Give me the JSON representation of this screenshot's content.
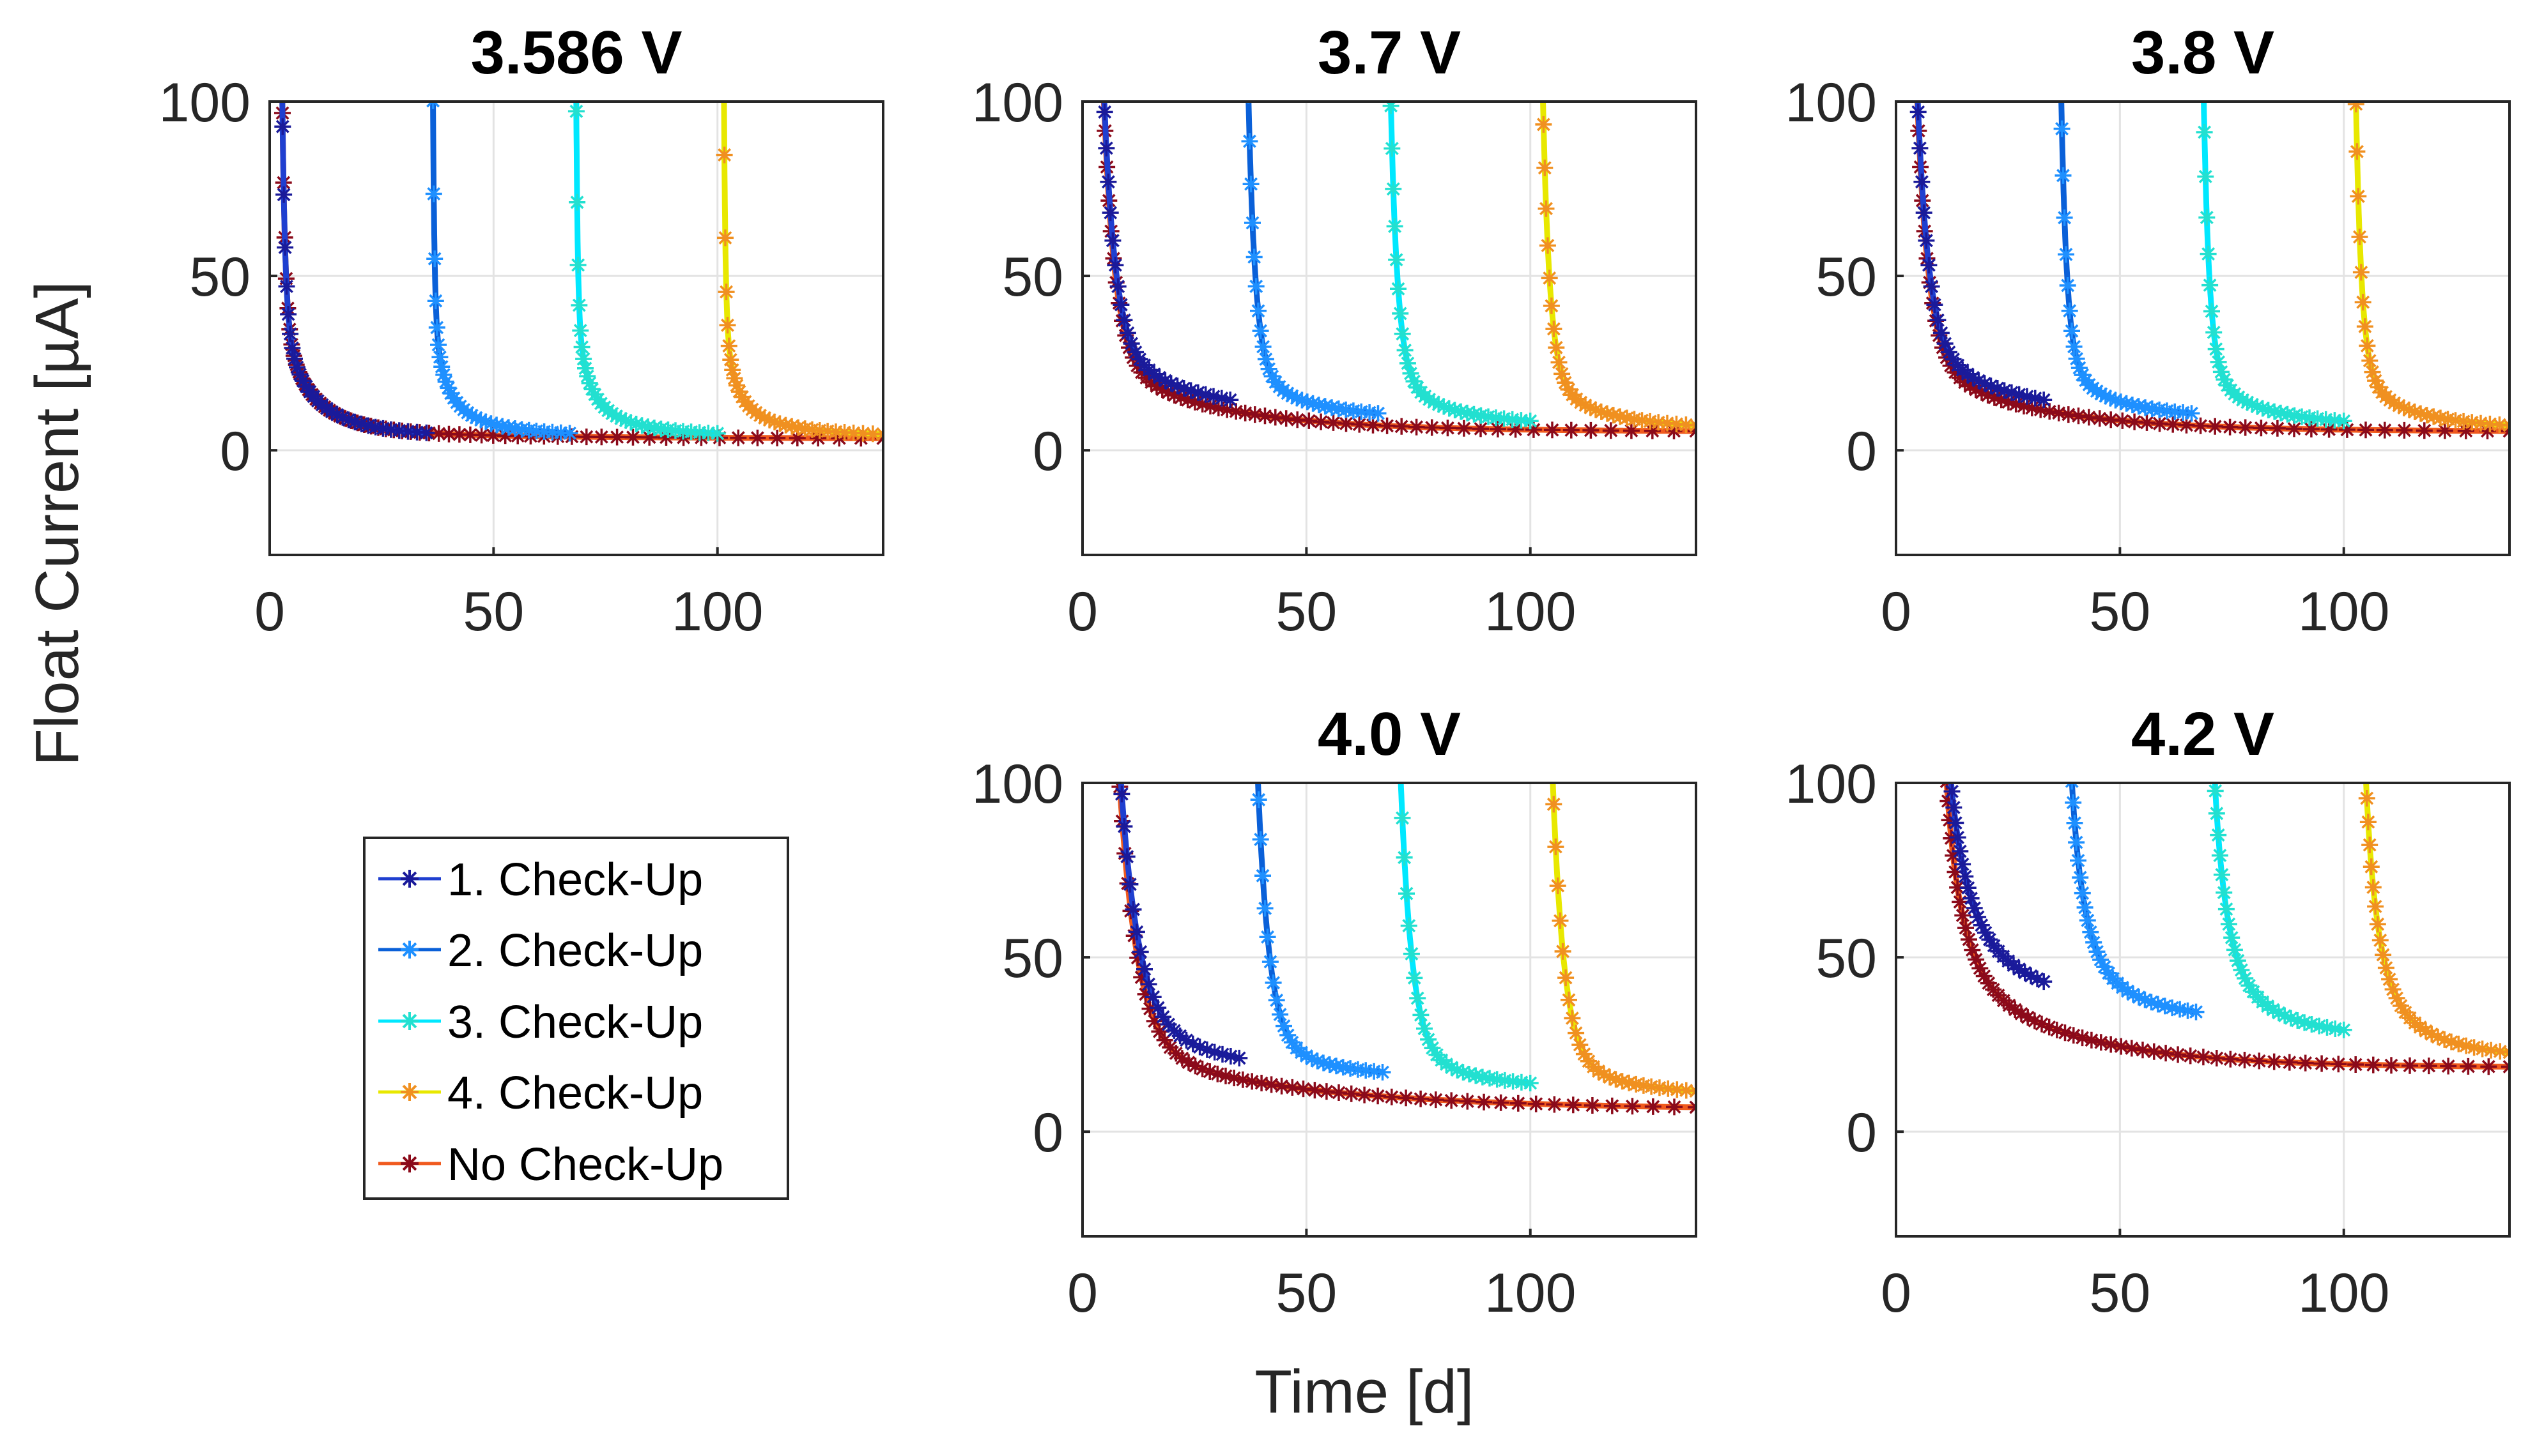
{
  "figure": {
    "ylabel": "Float Current [µA]",
    "xlabel": "Time [d]"
  },
  "legend": {
    "placement": "left-bottom",
    "entries": [
      {
        "label": "1. Check-Up",
        "color": "#1f3fd0"
      },
      {
        "label": "2. Check-Up",
        "color": "#1e90ff"
      },
      {
        "label": "3. Check-Up",
        "color": "#22e0d0"
      },
      {
        "label": "4. Check-Up",
        "color": "#e8d800"
      },
      {
        "label": "No Check-Up",
        "color": "#e8501a"
      }
    ]
  },
  "colors": {
    "series1_marker": "#1a1a9a",
    "series1_line": "#1f3fd0",
    "series2_marker": "#1e90ff",
    "series2_line": "#0a60d8",
    "series3_marker": "#22e0d0",
    "series3_line": "#00e8ff",
    "series4_marker": "#f09020",
    "series4_line": "#e8e800",
    "series5_marker": "#8b0a1a",
    "series5_line": "#f05a1e"
  },
  "chart_data": [
    {
      "type": "line",
      "title": "3.586 V",
      "xlim": [
        0,
        137
      ],
      "ylim": [
        -30,
        100
      ],
      "xticks": [
        0,
        50,
        100
      ],
      "yticks": [
        0,
        50,
        100
      ],
      "grid": true,
      "series": [
        {
          "name": "1. Check-Up",
          "t0": 2,
          "t1": 35,
          "A": 200,
          "tau": 0.6,
          "floor": 3,
          "B": 15,
          "tau2": 8
        },
        {
          "name": "2. Check-Up",
          "t0": 36,
          "t1": 67,
          "A": 250,
          "tau": 0.3,
          "floor": 3,
          "B": 5,
          "tau2": 6
        },
        {
          "name": "3. Check-Up",
          "t0": 68,
          "t1": 100,
          "A": 250,
          "tau": 0.3,
          "floor": 3,
          "B": 5,
          "tau2": 6
        },
        {
          "name": "4. Check-Up",
          "t0": 101,
          "t1": 137,
          "A": 250,
          "tau": 0.3,
          "floor": 3,
          "B": 3,
          "tau2": 6
        },
        {
          "name": "No Check-Up",
          "t0": 2,
          "t1": 137,
          "A": 200,
          "tau": 0.6,
          "floor": 3,
          "B": 15,
          "tau2": 8
        }
      ]
    },
    {
      "type": "line",
      "title": "3.7 V",
      "xlim": [
        0,
        137
      ],
      "ylim": [
        -30,
        100
      ],
      "xticks": [
        0,
        50,
        100
      ],
      "yticks": [
        0,
        50,
        100
      ],
      "grid": true,
      "series": [
        {
          "name": "1. Check-Up",
          "t0": 3,
          "t1": 33,
          "A": 120,
          "tau": 2.5,
          "floor": 8,
          "B": 15,
          "tau2": 25
        },
        {
          "name": "2. Check-Up",
          "t0": 36,
          "t1": 66,
          "A": 120,
          "tau": 1.5,
          "floor": 8,
          "B": 5,
          "tau2": 15
        },
        {
          "name": "3. Check-Up",
          "t0": 68,
          "t1": 100,
          "A": 100,
          "tau": 1.5,
          "floor": 6,
          "B": 5,
          "tau2": 15
        },
        {
          "name": "4. Check-Up",
          "t0": 102,
          "t1": 137,
          "A": 100,
          "tau": 1.5,
          "floor": 5,
          "B": 5,
          "tau2": 15
        },
        {
          "name": "No Check-Up",
          "t0": 3,
          "t1": 137,
          "A": 120,
          "tau": 2.5,
          "floor": 5,
          "B": 15,
          "tau2": 25
        }
      ]
    },
    {
      "type": "line",
      "title": "3.8 V",
      "xlim": [
        0,
        137
      ],
      "ylim": [
        -30,
        100
      ],
      "xticks": [
        0,
        50,
        100
      ],
      "yticks": [
        0,
        50,
        100
      ],
      "grid": true,
      "series": [
        {
          "name": "1. Check-Up",
          "t0": 3,
          "t1": 33,
          "A": 120,
          "tau": 2.5,
          "floor": 8,
          "B": 15,
          "tau2": 25
        },
        {
          "name": "2. Check-Up",
          "t0": 36,
          "t1": 66,
          "A": 120,
          "tau": 1.2,
          "floor": 8,
          "B": 5,
          "tau2": 15
        },
        {
          "name": "3. Check-Up",
          "t0": 68,
          "t1": 100,
          "A": 100,
          "tau": 1.2,
          "floor": 6,
          "B": 5,
          "tau2": 15
        },
        {
          "name": "4. Check-Up",
          "t0": 102,
          "t1": 137,
          "A": 100,
          "tau": 1.2,
          "floor": 5,
          "B": 5,
          "tau2": 15
        },
        {
          "name": "No Check-Up",
          "t0": 3,
          "t1": 137,
          "A": 120,
          "tau": 2.5,
          "floor": 5,
          "B": 15,
          "tau2": 25
        }
      ]
    },
    {
      "type": "line",
      "title": "4.0 V",
      "xlim": [
        0,
        137
      ],
      "ylim": [
        -30,
        100
      ],
      "xticks": [
        0,
        50,
        100
      ],
      "yticks": [
        0,
        50,
        100
      ],
      "grid": true,
      "series": [
        {
          "name": "1. Check-Up",
          "t0": 5,
          "t1": 35,
          "A": 150,
          "tau": 4,
          "floor": 12,
          "B": 15,
          "tau2": 40
        },
        {
          "name": "2. Check-Up",
          "t0": 37,
          "t1": 67,
          "A": 150,
          "tau": 2.5,
          "floor": 14,
          "B": 5,
          "tau2": 20
        },
        {
          "name": "3. Check-Up",
          "t0": 69,
          "t1": 100,
          "A": 150,
          "tau": 2.5,
          "floor": 11,
          "B": 5,
          "tau2": 20
        },
        {
          "name": "4. Check-Up",
          "t0": 103,
          "t1": 137,
          "A": 150,
          "tau": 2.5,
          "floor": 9,
          "B": 5,
          "tau2": 20
        },
        {
          "name": "No Check-Up",
          "t0": 5,
          "t1": 137,
          "A": 150,
          "tau": 4,
          "floor": 6,
          "B": 15,
          "tau2": 40
        }
      ]
    },
    {
      "type": "line",
      "title": "4.2 V",
      "xlim": [
        0,
        137
      ],
      "ylim": [
        -30,
        100
      ],
      "xticks": [
        0,
        50,
        100
      ],
      "yticks": [
        0,
        50,
        100
      ],
      "grid": true,
      "series": [
        {
          "name": "1. Check-Up",
          "t0": 10,
          "t1": 33,
          "A": 45,
          "tau": 4,
          "floor": 35,
          "B": 25,
          "tau2": 15
        },
        {
          "name": "2. Check-Up",
          "t0": 38,
          "t1": 67,
          "A": 45,
          "tau": 3,
          "floor": 31,
          "B": 15,
          "tau2": 12
        },
        {
          "name": "3. Check-Up",
          "t0": 70,
          "t1": 100,
          "A": 50,
          "tau": 3,
          "floor": 26,
          "B": 15,
          "tau2": 12
        },
        {
          "name": "4. Check-Up",
          "t0": 104,
          "t1": 137,
          "A": 50,
          "tau": 3,
          "floor": 20,
          "B": 15,
          "tau2": 12
        },
        {
          "name": "No Check-Up",
          "t0": 10,
          "t1": 137,
          "A": 45,
          "tau": 4,
          "floor": 18,
          "B": 25,
          "tau2": 25
        }
      ]
    }
  ]
}
